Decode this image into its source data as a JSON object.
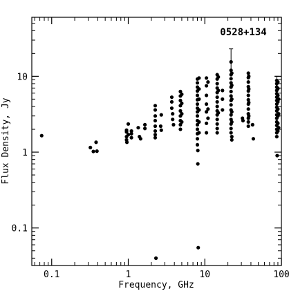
{
  "chart_data": {
    "type": "scatter",
    "title": "",
    "annotation": "0528+134",
    "xlabel": "Frequency, GHz",
    "ylabel": "Flux Density, Jy",
    "x_scale": "log",
    "y_scale": "log",
    "xlim": [
      0.055,
      100
    ],
    "ylim": [
      0.032,
      60
    ],
    "grid": false,
    "legend": "none",
    "x_ticks": [
      {
        "value": 0.1,
        "label": "0.1"
      },
      {
        "value": 1,
        "label": "1"
      },
      {
        "value": 10,
        "label": "10"
      },
      {
        "value": 100,
        "label": "100"
      }
    ],
    "y_ticks": [
      {
        "value": 0.1,
        "label": "0.1"
      },
      {
        "value": 1,
        "label": "1"
      },
      {
        "value": 10,
        "label": "10"
      }
    ],
    "marker_color": "#000000",
    "points": [
      [
        0.074,
        1.65
      ],
      [
        0.32,
        1.15
      ],
      [
        0.35,
        1.02
      ],
      [
        0.38,
        1.35
      ],
      [
        0.39,
        1.03
      ],
      [
        0.95,
        1.45
      ],
      [
        0.95,
        1.6
      ],
      [
        0.95,
        1.85
      ],
      [
        0.95,
        1.95
      ],
      [
        0.96,
        1.35
      ],
      [
        1.0,
        2.35
      ],
      [
        1.0,
        1.7
      ],
      [
        1.1,
        1.55
      ],
      [
        1.1,
        1.75
      ],
      [
        1.1,
        1.9
      ],
      [
        1.35,
        2.1
      ],
      [
        1.4,
        1.6
      ],
      [
        1.45,
        1.5
      ],
      [
        1.65,
        2.3
      ],
      [
        1.65,
        2.05
      ],
      [
        2.25,
        4.1
      ],
      [
        2.25,
        3.6
      ],
      [
        2.25,
        3.0
      ],
      [
        2.25,
        2.6
      ],
      [
        2.25,
        2.2
      ],
      [
        2.25,
        1.9
      ],
      [
        2.25,
        1.7
      ],
      [
        2.25,
        1.55
      ],
      [
        2.3,
        0.04
      ],
      [
        2.65,
        2.2
      ],
      [
        2.7,
        1.95
      ],
      [
        2.7,
        3.1
      ],
      [
        3.7,
        5.3
      ],
      [
        3.7,
        4.6
      ],
      [
        3.7,
        3.8
      ],
      [
        3.8,
        3.2
      ],
      [
        3.8,
        2.7
      ],
      [
        3.9,
        2.3
      ],
      [
        4.8,
        6.3
      ],
      [
        4.8,
        5.5
      ],
      [
        4.8,
        4.8
      ],
      [
        4.8,
        4.1
      ],
      [
        4.8,
        3.5
      ],
      [
        4.8,
        3.0
      ],
      [
        4.8,
        2.6
      ],
      [
        4.8,
        2.3
      ],
      [
        4.8,
        2.0
      ],
      [
        5.0,
        5.8
      ],
      [
        5.0,
        4.4
      ],
      [
        5.0,
        3.2
      ],
      [
        5.0,
        2.5
      ],
      [
        8.0,
        9.2
      ],
      [
        8.0,
        8.2
      ],
      [
        8.0,
        7.2
      ],
      [
        8.0,
        6.4
      ],
      [
        8.0,
        5.6
      ],
      [
        8.0,
        4.9
      ],
      [
        8.0,
        4.3
      ],
      [
        8.0,
        3.8
      ],
      [
        8.0,
        3.4
      ],
      [
        8.0,
        3.0
      ],
      [
        8.0,
        2.6
      ],
      [
        8.0,
        2.3
      ],
      [
        8.0,
        2.0
      ],
      [
        8.0,
        1.75
      ],
      [
        8.0,
        1.5
      ],
      [
        8.0,
        1.25
      ],
      [
        8.1,
        1.05
      ],
      [
        8.1,
        0.7
      ],
      [
        8.2,
        0.055
      ],
      [
        8.4,
        9.5
      ],
      [
        8.4,
        6.8
      ],
      [
        8.4,
        5.0
      ],
      [
        8.4,
        3.6
      ],
      [
        8.4,
        2.5
      ],
      [
        8.4,
        1.8
      ],
      [
        10.5,
        9.5
      ],
      [
        10.5,
        7.5
      ],
      [
        10.5,
        5.6
      ],
      [
        10.5,
        4.3
      ],
      [
        10.5,
        3.4
      ],
      [
        10.5,
        2.4
      ],
      [
        10.5,
        1.8
      ],
      [
        11.0,
        8.4
      ],
      [
        11.0,
        3.7
      ],
      [
        11.0,
        2.8
      ],
      [
        14.5,
        10.5
      ],
      [
        14.5,
        9.2
      ],
      [
        14.5,
        8.0
      ],
      [
        14.5,
        7.0
      ],
      [
        14.5,
        6.1
      ],
      [
        14.5,
        5.3
      ],
      [
        14.5,
        4.6
      ],
      [
        14.5,
        4.0
      ],
      [
        14.5,
        3.5
      ],
      [
        14.5,
        3.1
      ],
      [
        14.5,
        2.7
      ],
      [
        14.5,
        2.35
      ],
      [
        14.5,
        2.05
      ],
      [
        14.5,
        1.8
      ],
      [
        15.0,
        9.8
      ],
      [
        15.0,
        6.5
      ],
      [
        15.0,
        3.3
      ],
      [
        17.0,
        6.5
      ],
      [
        17.0,
        5.0
      ],
      [
        17.0,
        3.6
      ],
      [
        22.0,
        15.5
      ],
      [
        22.0,
        12.0
      ],
      [
        22.0,
        10.5
      ],
      [
        22.0,
        9.3
      ],
      [
        22.0,
        8.2
      ],
      [
        22.0,
        7.2
      ],
      [
        22.0,
        6.3
      ],
      [
        22.0,
        5.5
      ],
      [
        22.0,
        4.8
      ],
      [
        22.0,
        4.2
      ],
      [
        22.0,
        3.6
      ],
      [
        22.0,
        3.1
      ],
      [
        22.0,
        2.7
      ],
      [
        22.0,
        2.35
      ],
      [
        22.0,
        2.05
      ],
      [
        22.0,
        1.8
      ],
      [
        22.5,
        1.6
      ],
      [
        22.5,
        1.45
      ],
      [
        22.5,
        11.0
      ],
      [
        22.5,
        7.6
      ],
      [
        22.5,
        5.0
      ],
      [
        22.5,
        3.4
      ],
      [
        22.5,
        2.5
      ],
      [
        31.0,
        2.8
      ],
      [
        31.5,
        2.6
      ],
      [
        37.0,
        11.0
      ],
      [
        37.0,
        9.6
      ],
      [
        37.0,
        8.4
      ],
      [
        37.0,
        7.3
      ],
      [
        37.0,
        6.4
      ],
      [
        37.0,
        5.6
      ],
      [
        37.0,
        4.9
      ],
      [
        37.0,
        4.3
      ],
      [
        37.0,
        3.7
      ],
      [
        37.0,
        3.2
      ],
      [
        37.0,
        2.8
      ],
      [
        37.0,
        2.5
      ],
      [
        37.0,
        2.2
      ],
      [
        37.5,
        10.0
      ],
      [
        37.5,
        6.8
      ],
      [
        37.5,
        4.5
      ],
      [
        37.5,
        3.0
      ],
      [
        42.0,
        2.3
      ],
      [
        43.0,
        1.5
      ],
      [
        87.0,
        8.8
      ],
      [
        87.0,
        8.0
      ],
      [
        87.0,
        7.2
      ],
      [
        87.0,
        6.5
      ],
      [
        87.0,
        5.9
      ],
      [
        87.0,
        5.3
      ],
      [
        87.0,
        4.8
      ],
      [
        87.0,
        4.3
      ],
      [
        87.0,
        3.9
      ],
      [
        87.0,
        3.5
      ],
      [
        87.0,
        3.1
      ],
      [
        87.0,
        2.8
      ],
      [
        87.0,
        2.5
      ],
      [
        87.0,
        2.25
      ],
      [
        87.0,
        2.0
      ],
      [
        87.0,
        1.8
      ],
      [
        87.0,
        1.6
      ],
      [
        88.0,
        0.9
      ],
      [
        90.0,
        8.4
      ],
      [
        90.0,
        6.9
      ],
      [
        90.0,
        5.6
      ],
      [
        90.0,
        4.6
      ],
      [
        90.0,
        3.7
      ],
      [
        90.0,
        3.0
      ],
      [
        90.0,
        2.4
      ],
      [
        90.0,
        1.9
      ],
      [
        92.0,
        5.0
      ],
      [
        92.0,
        3.2
      ],
      [
        92.0,
        2.1
      ]
    ],
    "error_bars": [
      {
        "x": 22.0,
        "y": 15.5,
        "low": 10.5,
        "high": 23.0
      },
      {
        "x": 87.0,
        "y": 8.8,
        "low": 8.0,
        "high": 10.0
      }
    ]
  }
}
